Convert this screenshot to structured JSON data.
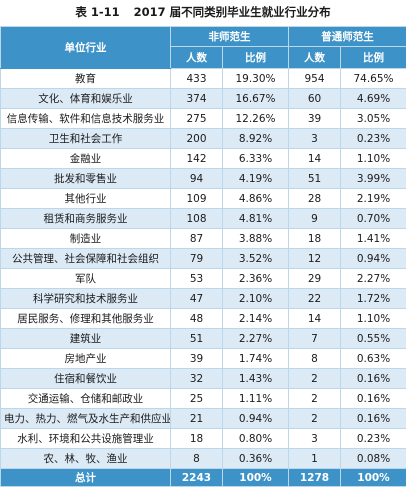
{
  "caption": {
    "number": "表 1-11",
    "title": "2017 届不同类别毕业生就业行业分布"
  },
  "header": {
    "unit": "单位行业",
    "group1": "非师范生",
    "group2": "普通师范生",
    "count": "人数",
    "ratio": "比例"
  },
  "rows": [
    [
      "教育",
      "433",
      "19.30%",
      "954",
      "74.65%"
    ],
    [
      "文化、体育和娱乐业",
      "374",
      "16.67%",
      "60",
      "4.69%"
    ],
    [
      "信息传输、软件和信息技术服务业",
      "275",
      "12.26%",
      "39",
      "3.05%"
    ],
    [
      "卫生和社会工作",
      "200",
      "8.92%",
      "3",
      "0.23%"
    ],
    [
      "金融业",
      "142",
      "6.33%",
      "14",
      "1.10%"
    ],
    [
      "批发和零售业",
      "94",
      "4.19%",
      "51",
      "3.99%"
    ],
    [
      "其他行业",
      "109",
      "4.86%",
      "28",
      "2.19%"
    ],
    [
      "租赁和商务服务业",
      "108",
      "4.81%",
      "9",
      "0.70%"
    ],
    [
      "制造业",
      "87",
      "3.88%",
      "18",
      "1.41%"
    ],
    [
      "公共管理、社会保障和社会组织",
      "79",
      "3.52%",
      "12",
      "0.94%"
    ],
    [
      "军队",
      "53",
      "2.36%",
      "29",
      "2.27%"
    ],
    [
      "科学研究和技术服务业",
      "47",
      "2.10%",
      "22",
      "1.72%"
    ],
    [
      "居民服务、修理和其他服务业",
      "48",
      "2.14%",
      "14",
      "1.10%"
    ],
    [
      "建筑业",
      "51",
      "2.27%",
      "7",
      "0.55%"
    ],
    [
      "房地产业",
      "39",
      "1.74%",
      "8",
      "0.63%"
    ],
    [
      "住宿和餐饮业",
      "32",
      "1.43%",
      "2",
      "0.16%"
    ],
    [
      "交通运输、仓储和邮政业",
      "25",
      "1.11%",
      "2",
      "0.16%"
    ],
    [
      "电力、热力、燃气及水生产和供应业",
      "21",
      "0.94%",
      "2",
      "0.16%"
    ],
    [
      "水利、环境和公共设施管理业",
      "18",
      "0.80%",
      "3",
      "0.23%"
    ],
    [
      "农、林、牧、渔业",
      "8",
      "0.36%",
      "1",
      "0.08%"
    ]
  ],
  "total": [
    "总计",
    "2243",
    "100%",
    "1278",
    "100%"
  ]
}
